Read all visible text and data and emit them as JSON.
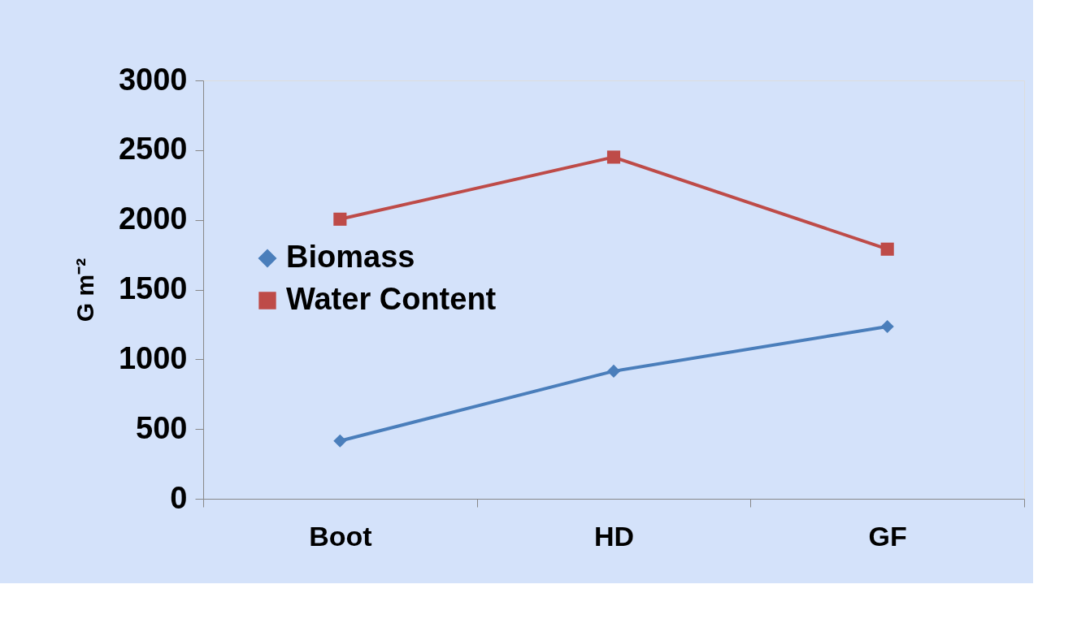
{
  "chart_data": {
    "type": "line",
    "ylabel": "G m⁻²",
    "categories": [
      "Boot",
      "HD",
      "GF"
    ],
    "series": [
      {
        "name": "Biomass",
        "color": "#4a7ebb",
        "marker": "diamond",
        "values": [
          415,
          915,
          1235
        ]
      },
      {
        "name": "Water Content",
        "color": "#be4b48",
        "marker": "square",
        "values": [
          2005,
          2450,
          1790
        ]
      }
    ],
    "ylim": [
      0,
      3000
    ],
    "yticks": [
      0,
      500,
      1000,
      1500,
      2000,
      2500,
      3000
    ],
    "grid": false,
    "legend": "left",
    "line_style": "solid"
  }
}
